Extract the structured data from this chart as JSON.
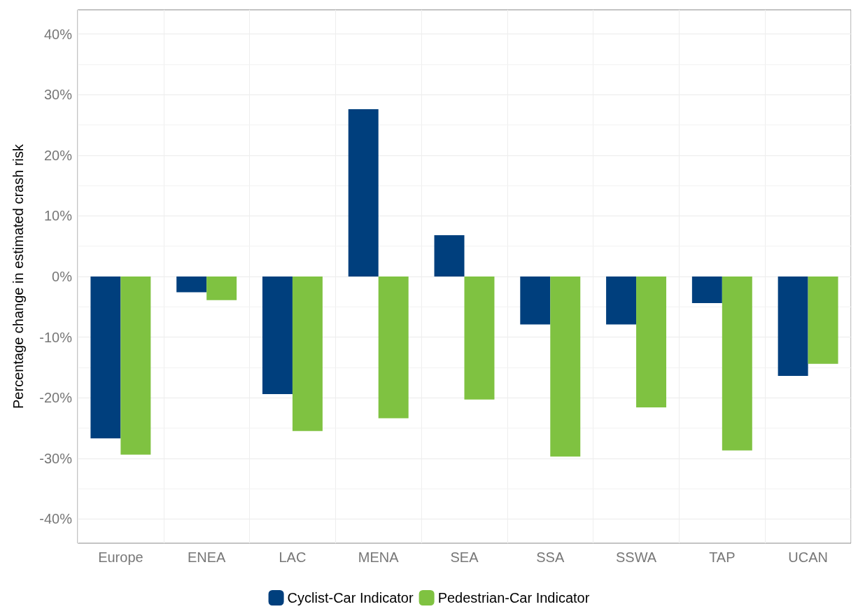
{
  "chart_data": {
    "type": "bar",
    "ylabel": "Percentage change in estimated crash risk",
    "categories": [
      "Europe",
      "ENEA",
      "LAC",
      "MENA",
      "SEA",
      "SSA",
      "SSWA",
      "TAP",
      "UCAN"
    ],
    "series": [
      {
        "name": "Cyclist-Car Indicator",
        "color": "#003f7d",
        "values": [
          -26.7,
          -2.6,
          -19.4,
          27.6,
          6.8,
          -7.9,
          -7.9,
          -4.4,
          -16.4
        ]
      },
      {
        "name": "Pedestrian-Car Indicator",
        "color": "#7fc241",
        "values": [
          -29.4,
          -3.9,
          -25.5,
          -23.4,
          -20.3,
          -29.7,
          -21.6,
          -28.7,
          -14.4
        ]
      }
    ],
    "ylim": [
      -44,
      44
    ],
    "yticks": [
      {
        "value": -40,
        "label": "-40%"
      },
      {
        "value": -30,
        "label": "-30%"
      },
      {
        "value": -20,
        "label": "-20%"
      },
      {
        "value": -10,
        "label": "-10%"
      },
      {
        "value": 0,
        "label": "0%"
      },
      {
        "value": 10,
        "label": "10%"
      },
      {
        "value": 20,
        "label": "20%"
      },
      {
        "value": 30,
        "label": "30%"
      },
      {
        "value": 40,
        "label": "40%"
      }
    ],
    "grid": true,
    "legend": "bottom"
  }
}
